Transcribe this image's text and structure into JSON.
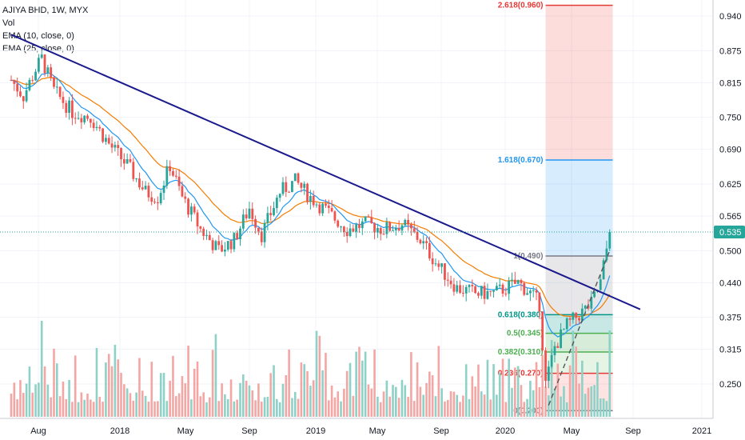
{
  "legend": {
    "title": "AJIYA BHD, 1W, MYX",
    "vol": "Vol",
    "ema10": "EMA (10, close, 0)",
    "ema25": "EMA (25, close, 0)"
  },
  "colors": {
    "up": "#26a69a",
    "down": "#ef5350",
    "vol_up": "#8ed1c7",
    "vol_down": "#f4a6a4",
    "ema10": "#2196f3",
    "ema25": "#f57c00",
    "trendline": "#1a1a8c",
    "price_label_bg": "#26a69a",
    "fib_red": "#e53935",
    "fib_blue": "#2196f3",
    "fib_green": "#4caf50",
    "fib_teal": "#009688",
    "fib_gray": "#787b86"
  },
  "chart_data": {
    "type": "candlestick",
    "symbol": "AJIYA BHD",
    "interval": "1W",
    "exchange": "MYX",
    "y_axis_ticks": [
      "0.940",
      "0.875",
      "0.815",
      "0.750",
      "0.690",
      "0.625",
      "0.565",
      "0.500",
      "0.440",
      "0.375",
      "0.315",
      "0.250"
    ],
    "x_axis_ticks": [
      "Aug",
      "2018",
      "May",
      "Sep",
      "2019",
      "May",
      "Sep",
      "2020",
      "May",
      "Sep",
      "2021"
    ],
    "last_price_label": "0.535",
    "last_price": 0.535,
    "price_series": [
      {
        "t": 0,
        "p": 0.82
      },
      {
        "t": 4,
        "p": 0.79
      },
      {
        "t": 8,
        "p": 0.84
      },
      {
        "t": 10,
        "p": 0.86
      },
      {
        "t": 14,
        "p": 0.8
      },
      {
        "t": 20,
        "p": 0.76
      },
      {
        "t": 26,
        "p": 0.75
      },
      {
        "t": 32,
        "p": 0.7
      },
      {
        "t": 38,
        "p": 0.66
      },
      {
        "t": 44,
        "p": 0.61
      },
      {
        "t": 48,
        "p": 0.6
      },
      {
        "t": 52,
        "p": 0.66
      },
      {
        "t": 56,
        "p": 0.6
      },
      {
        "t": 62,
        "p": 0.54
      },
      {
        "t": 68,
        "p": 0.5
      },
      {
        "t": 73,
        "p": 0.52
      },
      {
        "t": 78,
        "p": 0.58
      },
      {
        "t": 82,
        "p": 0.53
      },
      {
        "t": 88,
        "p": 0.61
      },
      {
        "t": 93,
        "p": 0.63
      },
      {
        "t": 98,
        "p": 0.6
      },
      {
        "t": 104,
        "p": 0.57
      },
      {
        "t": 110,
        "p": 0.54
      },
      {
        "t": 116,
        "p": 0.55
      },
      {
        "t": 122,
        "p": 0.54
      },
      {
        "t": 128,
        "p": 0.55
      },
      {
        "t": 134,
        "p": 0.52
      },
      {
        "t": 140,
        "p": 0.47
      },
      {
        "t": 146,
        "p": 0.43
      },
      {
        "t": 152,
        "p": 0.42
      },
      {
        "t": 158,
        "p": 0.42
      },
      {
        "t": 162,
        "p": 0.43
      },
      {
        "t": 166,
        "p": 0.44
      },
      {
        "t": 170,
        "p": 0.42
      },
      {
        "t": 173,
        "p": 0.4
      },
      {
        "t": 175,
        "p": 0.25
      },
      {
        "t": 178,
        "p": 0.32
      },
      {
        "t": 182,
        "p": 0.36
      },
      {
        "t": 186,
        "p": 0.38
      },
      {
        "t": 190,
        "p": 0.4
      },
      {
        "t": 193,
        "p": 0.44
      },
      {
        "t": 196,
        "p": 0.535
      }
    ],
    "trendline": {
      "from": {
        "t": 0,
        "p": 0.905
      },
      "to": {
        "t": 206,
        "p": 0.39
      }
    },
    "fibonacci": {
      "levels": [
        {
          "ratio_label": "2.618(0.960)",
          "value": 0.96,
          "color": "#e53935"
        },
        {
          "ratio_label": "1.618(0.670)",
          "value": 0.67,
          "color": "#2196f3"
        },
        {
          "ratio_label": "1(0.490)",
          "value": 0.49,
          "color": "#787b86"
        },
        {
          "ratio_label": "0.618(0.380)",
          "value": 0.38,
          "color": "#009688"
        },
        {
          "ratio_label": "0.5(0.345)",
          "value": 0.345,
          "color": "#4caf50"
        },
        {
          "ratio_label": "0.382(0.310)",
          "value": 0.31,
          "color": "#4caf50"
        },
        {
          "ratio_label": "0.236(0.270)",
          "value": 0.27,
          "color": "#e53935"
        },
        {
          "ratio_label": "0(0.200)",
          "value": 0.2,
          "color": "#787b86"
        }
      ],
      "t_start": 175,
      "t_end": 197
    },
    "grid": true,
    "legend_placement": "top-left"
  }
}
